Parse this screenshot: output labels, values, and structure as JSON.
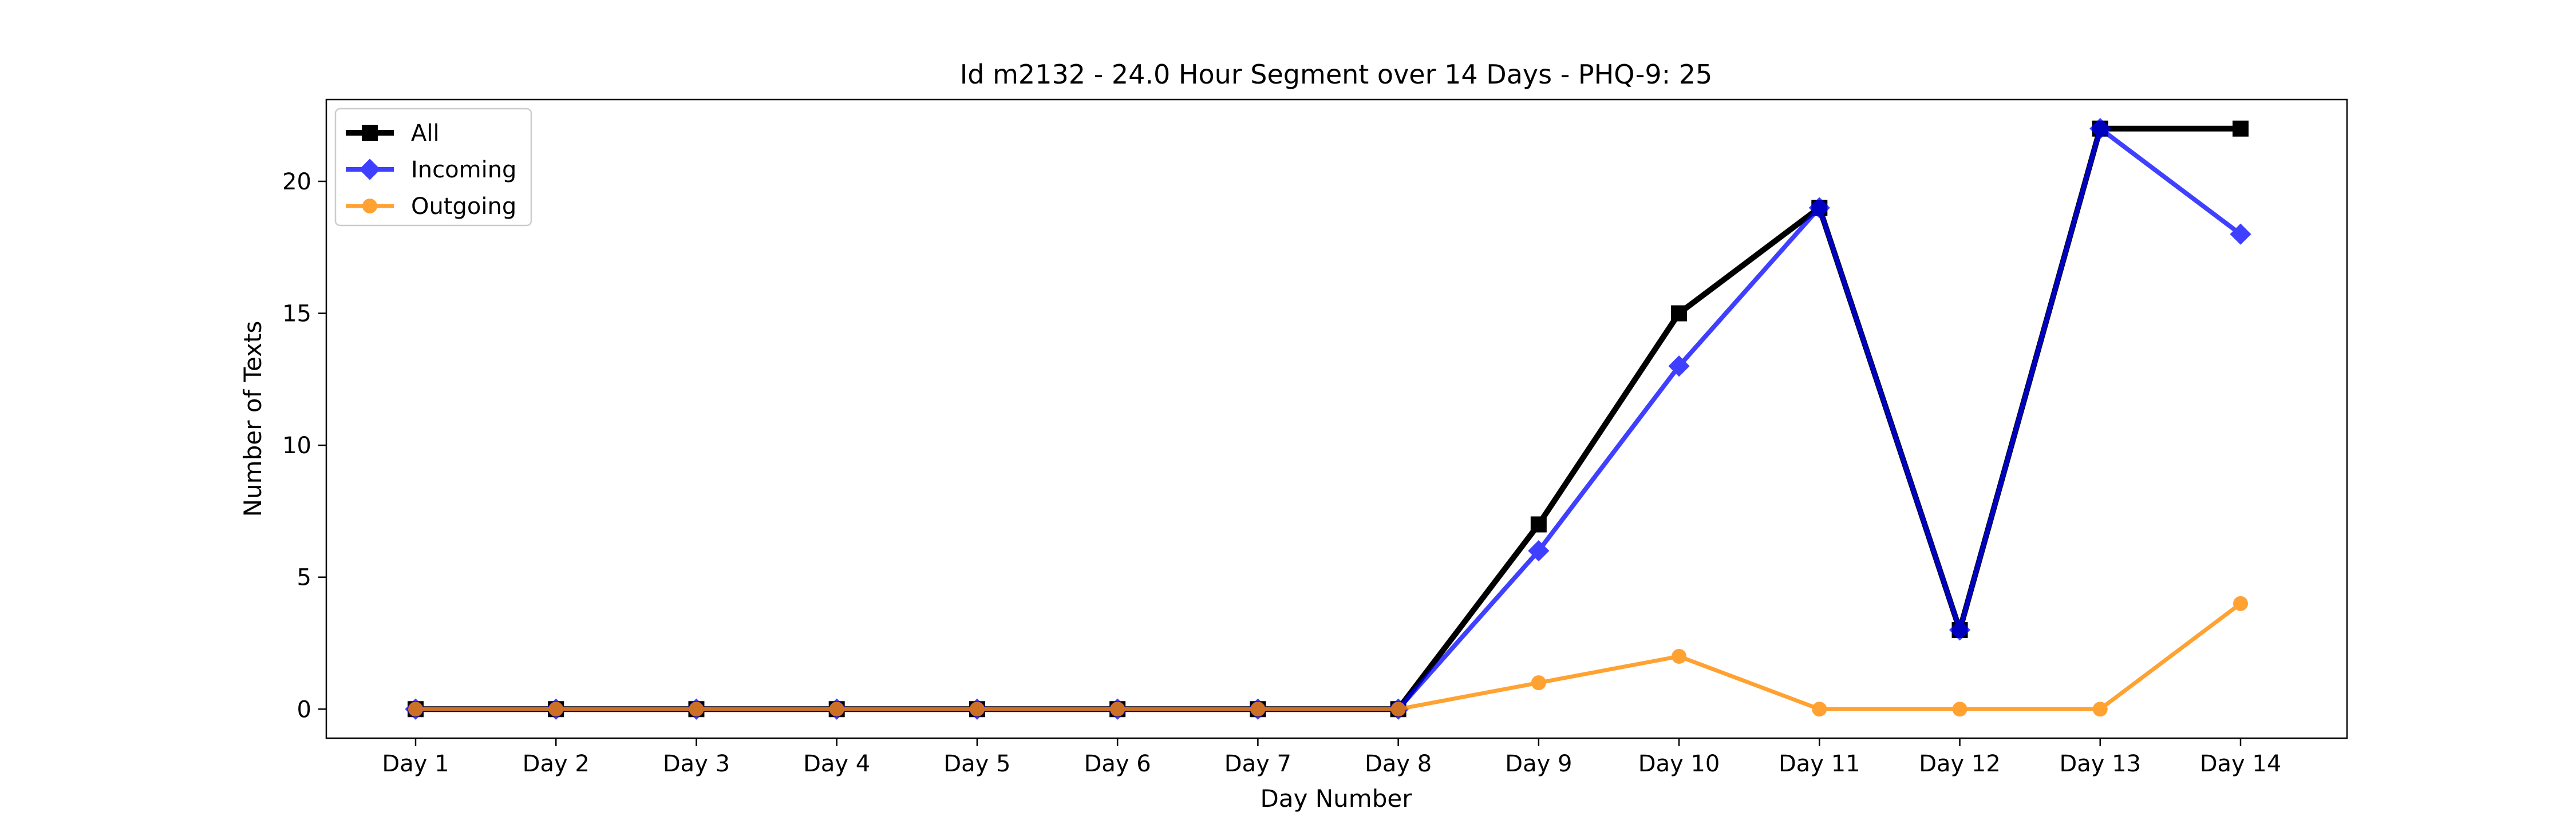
{
  "chart_data": {
    "type": "line",
    "title": "Id m2132 - 24.0 Hour Segment over 14 Days - PHQ-9: 25",
    "xlabel": "Day Number",
    "ylabel": "Number of Texts",
    "categories": [
      "Day 1",
      "Day 2",
      "Day 3",
      "Day 4",
      "Day 5",
      "Day 6",
      "Day 7",
      "Day 8",
      "Day 9",
      "Day 10",
      "Day 11",
      "Day 12",
      "Day 13",
      "Day 14"
    ],
    "ylim": [
      -1.1,
      23.1
    ],
    "yticks": [
      0,
      5,
      10,
      15,
      20
    ],
    "grid": false,
    "legend_position": "top-left",
    "series": [
      {
        "name": "All",
        "color": "#000000",
        "marker": "square",
        "values": [
          0,
          0,
          0,
          0,
          0,
          0,
          0,
          0,
          7,
          15,
          19,
          3,
          22,
          22
        ]
      },
      {
        "name": "Incoming",
        "color": "#0000ff",
        "marker": "diamond",
        "values": [
          0,
          0,
          0,
          0,
          0,
          0,
          0,
          0,
          6,
          13,
          19,
          3,
          22,
          18
        ]
      },
      {
        "name": "Outgoing",
        "color": "#ff8c00",
        "marker": "circle",
        "values": [
          0,
          0,
          0,
          0,
          0,
          0,
          0,
          0,
          1,
          2,
          0,
          0,
          0,
          4
        ]
      }
    ]
  }
}
